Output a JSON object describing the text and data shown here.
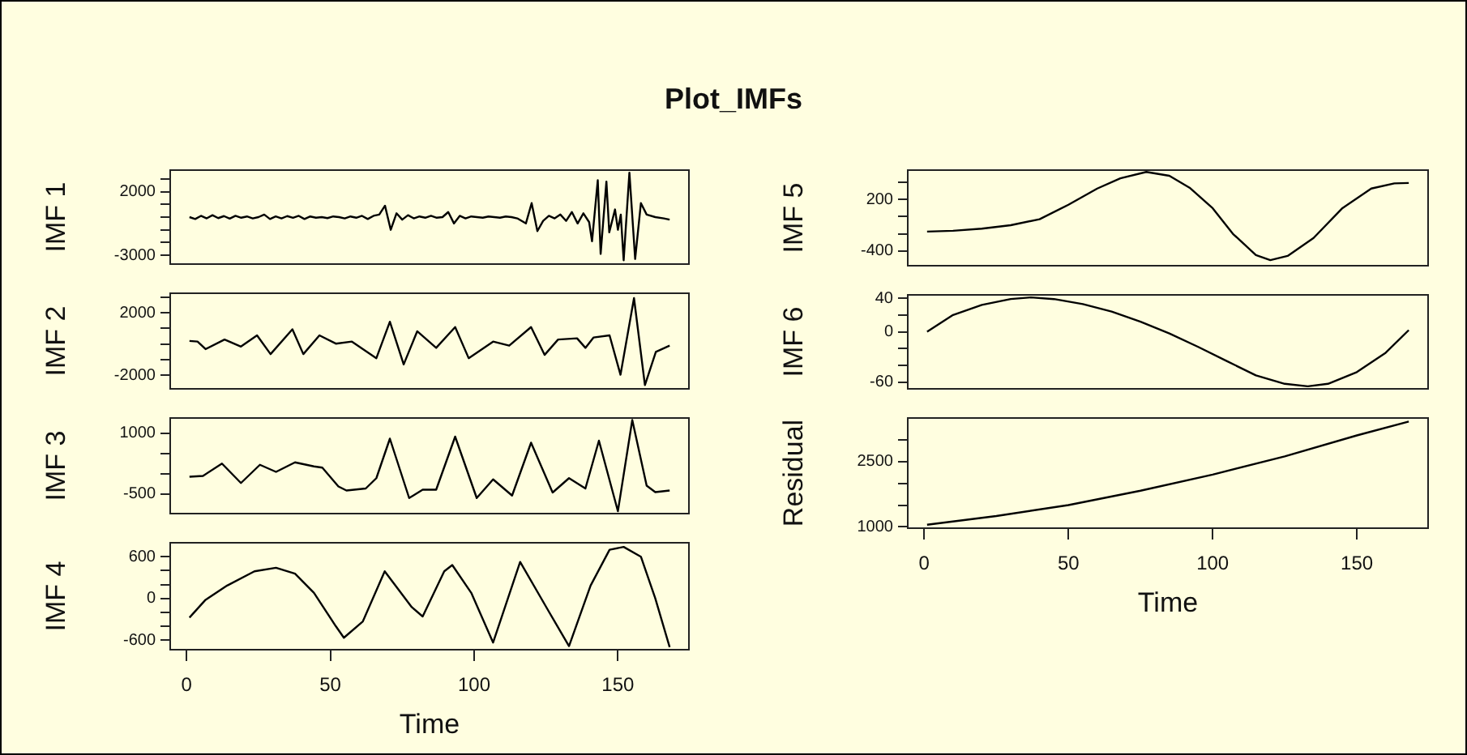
{
  "chart_data": [
    {
      "type": "line",
      "title": "Plot_IMFs",
      "ylabel": "IMF 1",
      "color": "#000000",
      "marker": "none",
      "tick_labels": "y",
      "xlim": [
        -5.7,
        174.7
      ],
      "ylim": [
        -3700,
        3700
      ],
      "yticks": [
        {
          "value": 3000,
          "label": null
        },
        2000,
        {
          "value": 1000,
          "label": null
        },
        {
          "value": 0,
          "label": null
        },
        {
          "value": -1000,
          "label": null
        },
        {
          "value": -2000,
          "label": null
        },
        -3000
      ],
      "x": [
        1,
        3,
        5,
        7,
        9,
        11,
        13,
        15,
        17,
        19,
        21,
        23,
        25,
        27,
        29,
        31,
        33,
        35,
        37,
        39,
        41,
        43,
        45,
        47,
        49,
        51,
        53,
        55,
        57,
        59,
        61,
        63,
        65,
        67,
        69,
        71,
        73,
        75,
        77,
        79,
        81,
        83,
        85,
        87,
        89,
        91,
        93,
        95,
        97,
        99,
        101,
        103,
        105,
        107,
        109,
        111,
        113,
        115,
        118,
        120,
        122,
        124,
        126,
        128,
        130,
        132,
        134,
        136,
        138,
        140,
        141,
        143,
        144,
        146,
        147,
        149,
        150,
        151,
        152,
        154,
        156,
        158,
        160,
        163,
        166,
        168
      ],
      "values": [
        0,
        -150,
        100,
        -100,
        150,
        -80,
        80,
        -120,
        100,
        -50,
        50,
        -100,
        0,
        200,
        -150,
        50,
        -100,
        80,
        -50,
        100,
        -150,
        50,
        -50,
        0,
        -80,
        50,
        0,
        -100,
        50,
        -50,
        100,
        -150,
        100,
        200,
        900,
        -1000,
        300,
        -200,
        150,
        -100,
        50,
        -50,
        100,
        -50,
        0,
        400,
        -500,
        100,
        -100,
        50,
        0,
        -50,
        50,
        0,
        -50,
        50,
        0,
        -100,
        -500,
        1100,
        -1100,
        -300,
        100,
        -100,
        200,
        -300,
        400,
        -500,
        300,
        -400,
        -1900,
        2900,
        -2900,
        2800,
        -1200,
        600,
        -1000,
        200,
        -3400,
        3500,
        -3300,
        1100,
        200,
        0,
        -100,
        -200
      ]
    },
    {
      "type": "line",
      "ylabel": "IMF 2",
      "color": "#000000",
      "marker": "none",
      "tick_labels": "y",
      "xlim": [
        -5.7,
        174.7
      ],
      "ylim": [
        -2860,
        3250
      ],
      "yticks": [
        {
          "value": 3000,
          "label": null
        },
        2000,
        {
          "value": 1000,
          "label": null
        },
        {
          "value": 0,
          "label": null
        },
        {
          "value": -1000,
          "label": null
        },
        -2000
      ],
      "x": [
        1,
        3.8,
        6.6,
        13.2,
        18.9,
        24.5,
        29.2,
        36.8,
        40.6,
        46.2,
        51.9,
        57.5,
        66,
        70.7,
        75.5,
        80.2,
        86.8,
        93.4,
        98.1,
        106.6,
        112.2,
        119.8,
        124.5,
        129.2,
        135.8,
        138.7,
        141.5,
        147.1,
        150.9,
        155.6,
        159.4,
        163.2,
        168
      ],
      "values": [
        200,
        160,
        -320,
        290,
        -160,
        560,
        -640,
        950,
        -640,
        560,
        30,
        160,
        -900,
        1430,
        -1300,
        820,
        -240,
        1090,
        -900,
        160,
        -100,
        1090,
        -690,
        290,
        370,
        -240,
        420,
        560,
        -1960,
        2940,
        -2620,
        -500,
        -100
      ]
    },
    {
      "type": "line",
      "ylabel": "IMF 3",
      "color": "#000000",
      "marker": "none",
      "tick_labels": "y",
      "xlim": [
        -5.7,
        174.7
      ],
      "ylim": [
        -990,
        1370
      ],
      "yticks": [
        1000,
        {
          "value": 500,
          "label": null
        },
        {
          "value": 0,
          "label": null
        },
        -500
      ],
      "x": [
        1,
        5.7,
        12.3,
        18.9,
        25.5,
        31.1,
        37.7,
        44.3,
        47.2,
        52.8,
        55.6,
        62.3,
        66,
        70.7,
        77.4,
        82.1,
        86.8,
        93.4,
        100.9,
        106.6,
        113.2,
        119.8,
        127.3,
        133,
        138.7,
        143.4,
        150,
        155,
        160,
        163,
        168
      ],
      "values": [
        -80,
        -60,
        245,
        -235,
        215,
        40,
        275,
        175,
        145,
        -320,
        -420,
        -370,
        -115,
        860,
        -605,
        -400,
        -400,
        910,
        -605,
        -145,
        -545,
        760,
        -470,
        -115,
        -370,
        810,
        -930,
        1320,
        -300,
        -460,
        -420
      ]
    },
    {
      "type": "line",
      "ylabel": "IMF 4",
      "xlabel": "Time",
      "color": "#000000",
      "marker": "none",
      "xlim": [
        -5.7,
        174.7
      ],
      "xticks": [
        0,
        50,
        100,
        150
      ],
      "ylim": [
        -737,
        800
      ],
      "yticks": [
        600,
        {
          "value": 400,
          "label": null
        },
        {
          "value": 200,
          "label": null
        },
        0,
        {
          "value": -200,
          "label": null
        },
        {
          "value": -400,
          "label": null
        },
        -600
      ],
      "x": [
        1,
        6.6,
        14.1,
        23.6,
        31.1,
        37.7,
        44.3,
        51.9,
        54.7,
        61.3,
        68.9,
        78.3,
        82.1,
        89.6,
        92.4,
        99,
        106.6,
        116,
        125.5,
        133,
        140.5,
        147.1,
        152,
        158,
        163,
        168
      ],
      "values": [
        -275,
        -20,
        185,
        390,
        440,
        355,
        80,
        -400,
        -565,
        -330,
        390,
        -125,
        -260,
        390,
        480,
        80,
        -635,
        525,
        -155,
        -685,
        185,
        700,
        740,
        600,
        0,
        -700
      ]
    },
    {
      "type": "line",
      "ylabel": "IMF 5",
      "color": "#000000",
      "marker": "none",
      "tick_labels": "y",
      "xlim": [
        -5.7,
        174.7
      ],
      "ylim": [
        -575,
        546
      ],
      "yticks": [
        {
          "value": 400,
          "label": null
        },
        200,
        {
          "value": 0,
          "label": null
        },
        {
          "value": -200,
          "label": null
        },
        -400
      ],
      "x": [
        1,
        10,
        20,
        30,
        40,
        50,
        60,
        68,
        77,
        85,
        92,
        100,
        107,
        115,
        120,
        126,
        135,
        145,
        155,
        163,
        168
      ],
      "values": [
        -175,
        -165,
        -140,
        -100,
        -30,
        140,
        330,
        450,
        525,
        480,
        340,
        100,
        -200,
        -450,
        -510,
        -460,
        -250,
        100,
        330,
        390,
        395
      ]
    },
    {
      "type": "line",
      "ylabel": "IMF 6",
      "color": "#000000",
      "marker": "none",
      "tick_labels": "y",
      "xlim": [
        -5.7,
        174.7
      ],
      "ylim": [
        -68,
        44
      ],
      "yticks": [
        40,
        {
          "value": 20,
          "label": null
        },
        0,
        {
          "value": -20,
          "label": null
        },
        {
          "value": -40,
          "label": null
        },
        -60
      ],
      "x": [
        1,
        10,
        20,
        30,
        37,
        45,
        55,
        65,
        75,
        85,
        95,
        105,
        115,
        125,
        133,
        140,
        150,
        160,
        168
      ],
      "values": [
        0,
        20,
        32,
        39,
        41,
        39,
        33,
        24,
        12,
        -2,
        -18,
        -35,
        -52,
        -62,
        -65,
        -62,
        -48,
        -25,
        2
      ]
    },
    {
      "type": "line",
      "ylabel": "Residual",
      "xlabel": "Time",
      "color": "#000000",
      "marker": "none",
      "xlim": [
        -5.7,
        174.7
      ],
      "xticks": [
        0,
        50,
        100,
        150
      ],
      "ylim": [
        970,
        3500
      ],
      "yticks": [
        {
          "value": 3000,
          "label": null
        },
        2500,
        {
          "value": 2000,
          "label": null
        },
        {
          "value": 1500,
          "label": null
        },
        1000
      ],
      "x": [
        1,
        25,
        50,
        75,
        100,
        125,
        150,
        168
      ],
      "values": [
        1050,
        1250,
        1500,
        1830,
        2200,
        2620,
        3100,
        3420
      ]
    }
  ]
}
